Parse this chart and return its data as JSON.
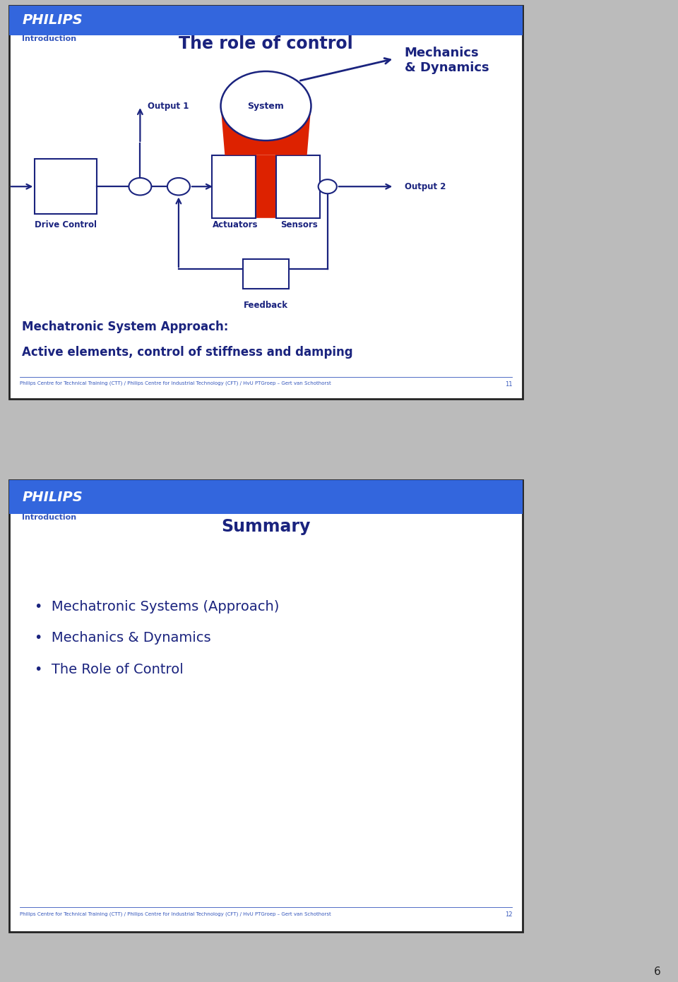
{
  "slide1": {
    "header_color": "#3366DD",
    "header_text": "PHILIPS",
    "header_text_color": "#FFFFFF",
    "subheader_text": "Introduction",
    "subheader_color": "#3355BB",
    "title": "The role of control",
    "title_color": "#1a237e",
    "red_fill": "#DD2200",
    "diagram_navy": "#1a237e",
    "mechanics_text": "Mechanics\n& Dynamics",
    "output1_text": "Output 1",
    "output2_text": "Output 2",
    "system_text": "System",
    "drive_control_text": "Drive Control",
    "actuators_text": "Actuators",
    "sensors_text": "Sensors",
    "feedback_text": "Feedback",
    "bottom_text1": "Mechatronic System Approach:",
    "bottom_text2": "Active elements, control of stiffness and damping",
    "bottom_color": "#1a237e",
    "footer_text": "Philips Centre for Technical Training (CTT) / Philips Centre for Industrial Technology (CFT) / HvU PTGroep – Gert van Schothorst",
    "footer_number": "11",
    "footer_color": "#3355BB"
  },
  "slide2": {
    "header_color": "#3366DD",
    "header_text": "PHILIPS",
    "header_text_color": "#FFFFFF",
    "subheader_text": "Introduction",
    "subheader_color": "#3355BB",
    "title": "Summary",
    "title_color": "#1a237e",
    "bullets": [
      "Mechatronic Systems (Approach)",
      "Mechanics & Dynamics",
      "The Role of Control"
    ],
    "bullet_color": "#1a237e",
    "footer_text": "Philips Centre for Technical Training (CTT) / Philips Centre for Industrial Technology (CFT) / HvU PTGroep – Gert van Schothorst",
    "footer_number": "12",
    "footer_color": "#3355BB"
  },
  "background_color": "#BBBBBB",
  "slide_bg": "#FFFFFF",
  "slide_border": "#222222",
  "page_number": "6"
}
